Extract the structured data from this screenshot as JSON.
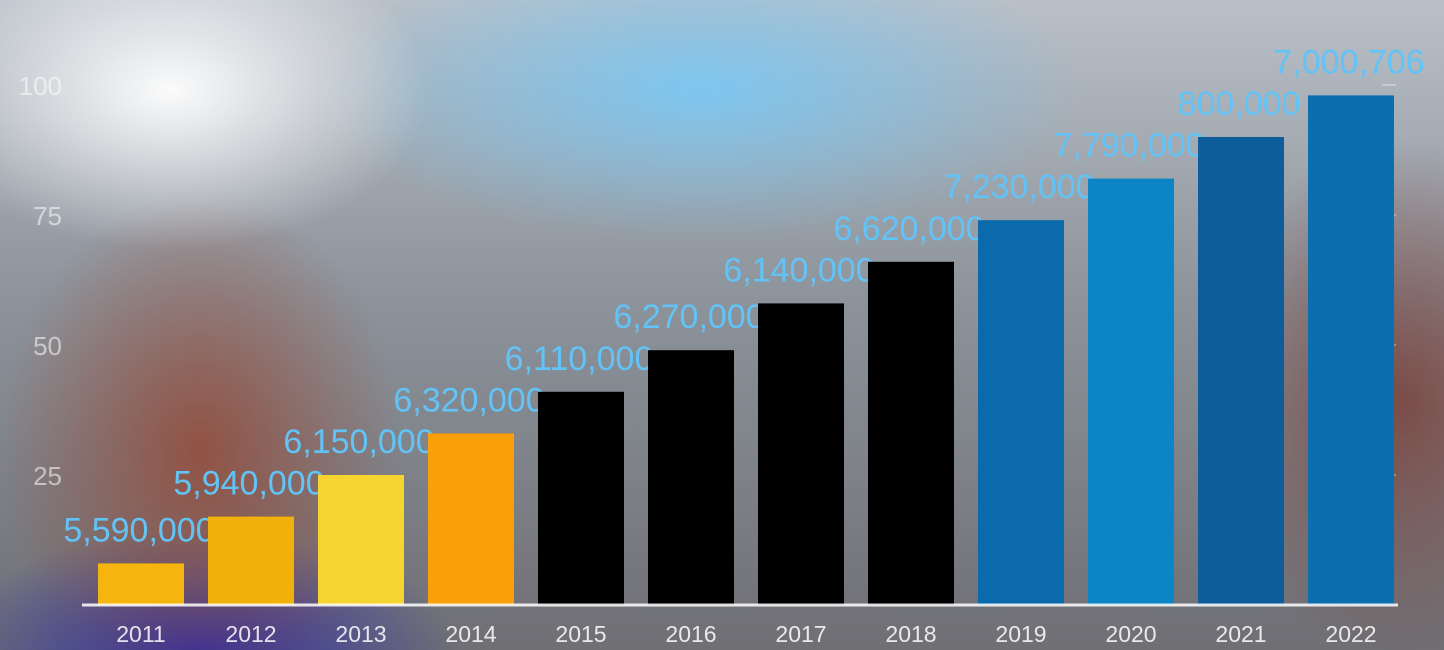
{
  "chart_data": {
    "type": "bar",
    "categories": [
      "2011",
      "2012",
      "2013",
      "2014",
      "2015",
      "2016",
      "2017",
      "2018",
      "2019",
      "2020",
      "2021",
      "2022"
    ],
    "values": [
      8,
      17,
      25,
      33,
      41,
      49,
      58,
      66,
      74,
      82,
      90,
      98
    ],
    "colors": [
      "#f5b50e",
      "#f2b10a",
      "#f6d531",
      "#f89f0a",
      "#000000",
      "#000000",
      "#000000",
      "#000000",
      "#0a6aab",
      "#0c85c6",
      "#0d5d9b",
      "#0b6faf"
    ],
    "annotations": [
      "5,590,000",
      "5,940,000",
      "6,150,000",
      "6,320,000",
      "6,110,000",
      "6,270,000",
      "6,140,000",
      "6,620,000",
      "7,230,000",
      "7,790,000",
      "800,000",
      "7,000,706"
    ],
    "ylim": [
      0,
      100
    ],
    "yticks": [
      25,
      50,
      75,
      100
    ],
    "grid": false
  }
}
